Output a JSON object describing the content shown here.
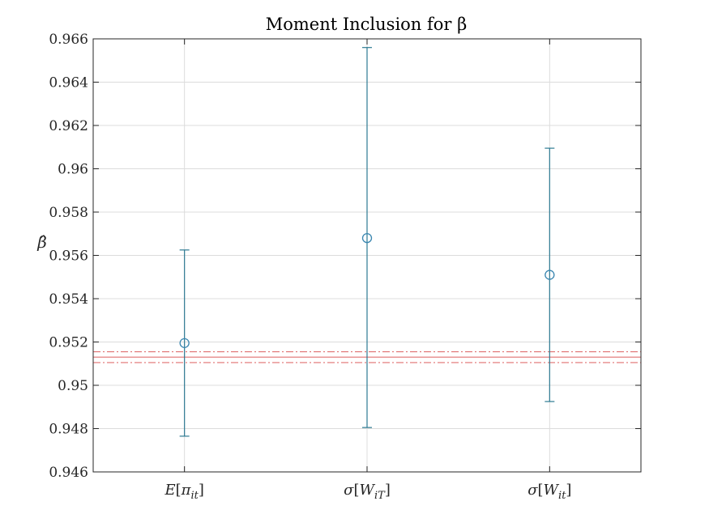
{
  "chart_data": {
    "type": "errorbar",
    "title": "Moment Inclusion for β",
    "ylabel": "β̂",
    "xlabel": "",
    "ylim": [
      0.946,
      0.966
    ],
    "yticks": [
      0.946,
      0.948,
      0.95,
      0.952,
      0.954,
      0.956,
      0.958,
      0.96,
      0.962,
      0.964,
      0.966
    ],
    "ytick_labels": [
      "0.946",
      "0.948",
      "0.95",
      "0.952",
      "0.954",
      "0.956",
      "0.958",
      "0.96",
      "0.962",
      "0.964",
      "0.966"
    ],
    "categories": [
      "E[π_it]",
      "σ[W_iT]",
      "σ[W_it]"
    ],
    "points": [
      {
        "label": "E[π_it]",
        "estimate": 0.95195,
        "lower": 0.94765,
        "upper": 0.95625
      },
      {
        "label": "σ[W_iT]",
        "estimate": 0.9568,
        "lower": 0.94805,
        "upper": 0.9656
      },
      {
        "label": "σ[W_it]",
        "estimate": 0.9551,
        "lower": 0.94925,
        "upper": 0.96095
      }
    ],
    "reference_lines": [
      {
        "value": 0.9513,
        "style": "solid"
      },
      {
        "value": 0.95155,
        "style": "dash-dot"
      },
      {
        "value": 0.95105,
        "style": "dash-dot"
      }
    ],
    "grid": true,
    "colors": {
      "errorbar": "#2d7a92",
      "marker": "#3a86b0",
      "reference": "#e07070"
    }
  }
}
